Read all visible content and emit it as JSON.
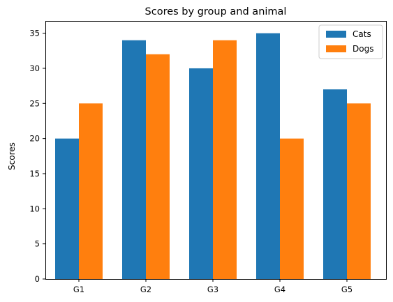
{
  "chart_data": {
    "type": "bar",
    "title": "Scores by group and animal",
    "xlabel": "",
    "ylabel": "Scores",
    "categories": [
      "G1",
      "G2",
      "G3",
      "G4",
      "G5"
    ],
    "series": [
      {
        "name": "Cats",
        "values": [
          20,
          34,
          30,
          35,
          27
        ],
        "color": "#1f77b4"
      },
      {
        "name": "Dogs",
        "values": [
          25,
          32,
          34,
          20,
          25
        ],
        "color": "#ff7f0e"
      }
    ],
    "ylim": [
      0,
      36.75
    ],
    "yticks": [
      0,
      5,
      10,
      15,
      20,
      25,
      30,
      35
    ],
    "grid": false,
    "legend": "top-right"
  }
}
